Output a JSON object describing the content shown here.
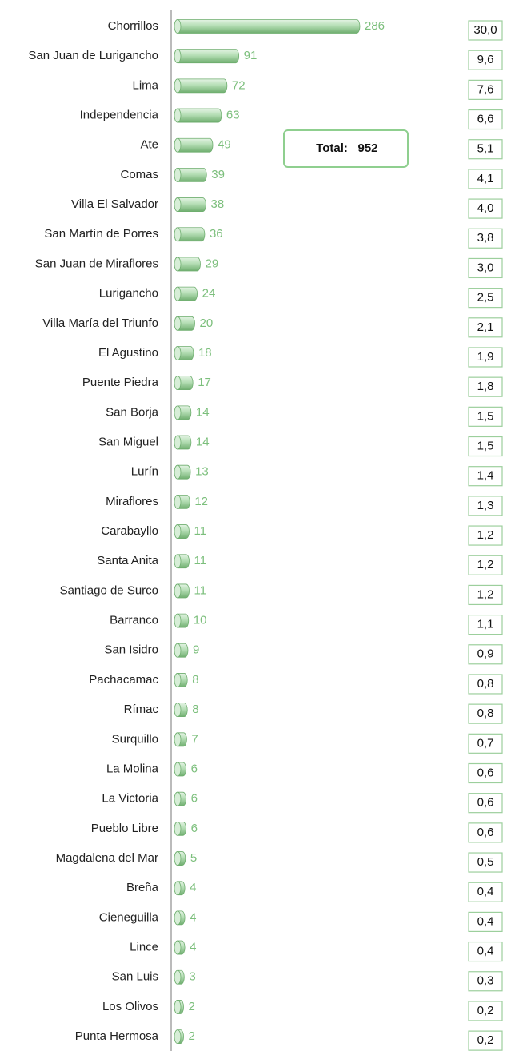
{
  "chart_data": {
    "type": "bar",
    "orientation": "horizontal",
    "color": "#8fcf8f",
    "categories": [
      "Chorrillos",
      "San Juan de Lurigancho",
      "Lima",
      "Independencia",
      "Ate",
      "Comas",
      "Villa El Salvador",
      "San Martín de Porres",
      "San Juan de Miraflores",
      "Lurigancho",
      "Villa María del Triunfo",
      "El Agustino",
      "Puente Piedra",
      "San Borja",
      "San Miguel",
      "Lurín",
      "Miraflores",
      "Carabayllo",
      "Santa Anita",
      "Santiago de Surco",
      "Barranco",
      "San Isidro",
      "Pachacamac",
      "Rímac",
      "Surquillo",
      "La Molina",
      "La Victoria",
      "Pueblo Libre",
      "Magdalena del Mar",
      "Breña",
      "Cieneguilla",
      "Lince",
      "San Luis",
      "Los Olivos",
      "Punta Hermosa"
    ],
    "values": [
      286,
      91,
      72,
      63,
      49,
      39,
      38,
      36,
      29,
      24,
      20,
      18,
      17,
      14,
      14,
      13,
      12,
      11,
      11,
      11,
      10,
      9,
      8,
      8,
      7,
      6,
      6,
      6,
      5,
      4,
      4,
      4,
      3,
      2,
      2
    ],
    "shares": [
      30.0,
      9.6,
      7.6,
      6.6,
      5.1,
      4.1,
      4.0,
      3.8,
      3.0,
      2.5,
      2.1,
      1.9,
      1.8,
      1.5,
      1.5,
      1.4,
      1.3,
      1.2,
      1.2,
      1.2,
      1.1,
      0.9,
      0.8,
      0.8,
      0.7,
      0.6,
      0.6,
      0.6,
      0.5,
      0.4,
      0.4,
      0.4,
      0.3,
      0.2,
      0.2
    ],
    "share_labels": [
      "30,0",
      "9,6",
      "7,6",
      "6,6",
      "5,1",
      "4,1",
      "4,0",
      "3,8",
      "3,0",
      "2,5",
      "2,1",
      "1,9",
      "1,8",
      "1,5",
      "1,5",
      "1,4",
      "1,3",
      "1,2",
      "1,2",
      "1,2",
      "1,1",
      "0,9",
      "0,8",
      "0,8",
      "0,7",
      "0,6",
      "0,6",
      "0,6",
      "0,5",
      "0,4",
      "0,4",
      "0,4",
      "0,3",
      "0,2",
      "0,2"
    ],
    "total_label": "Total:",
    "total": 952
  }
}
